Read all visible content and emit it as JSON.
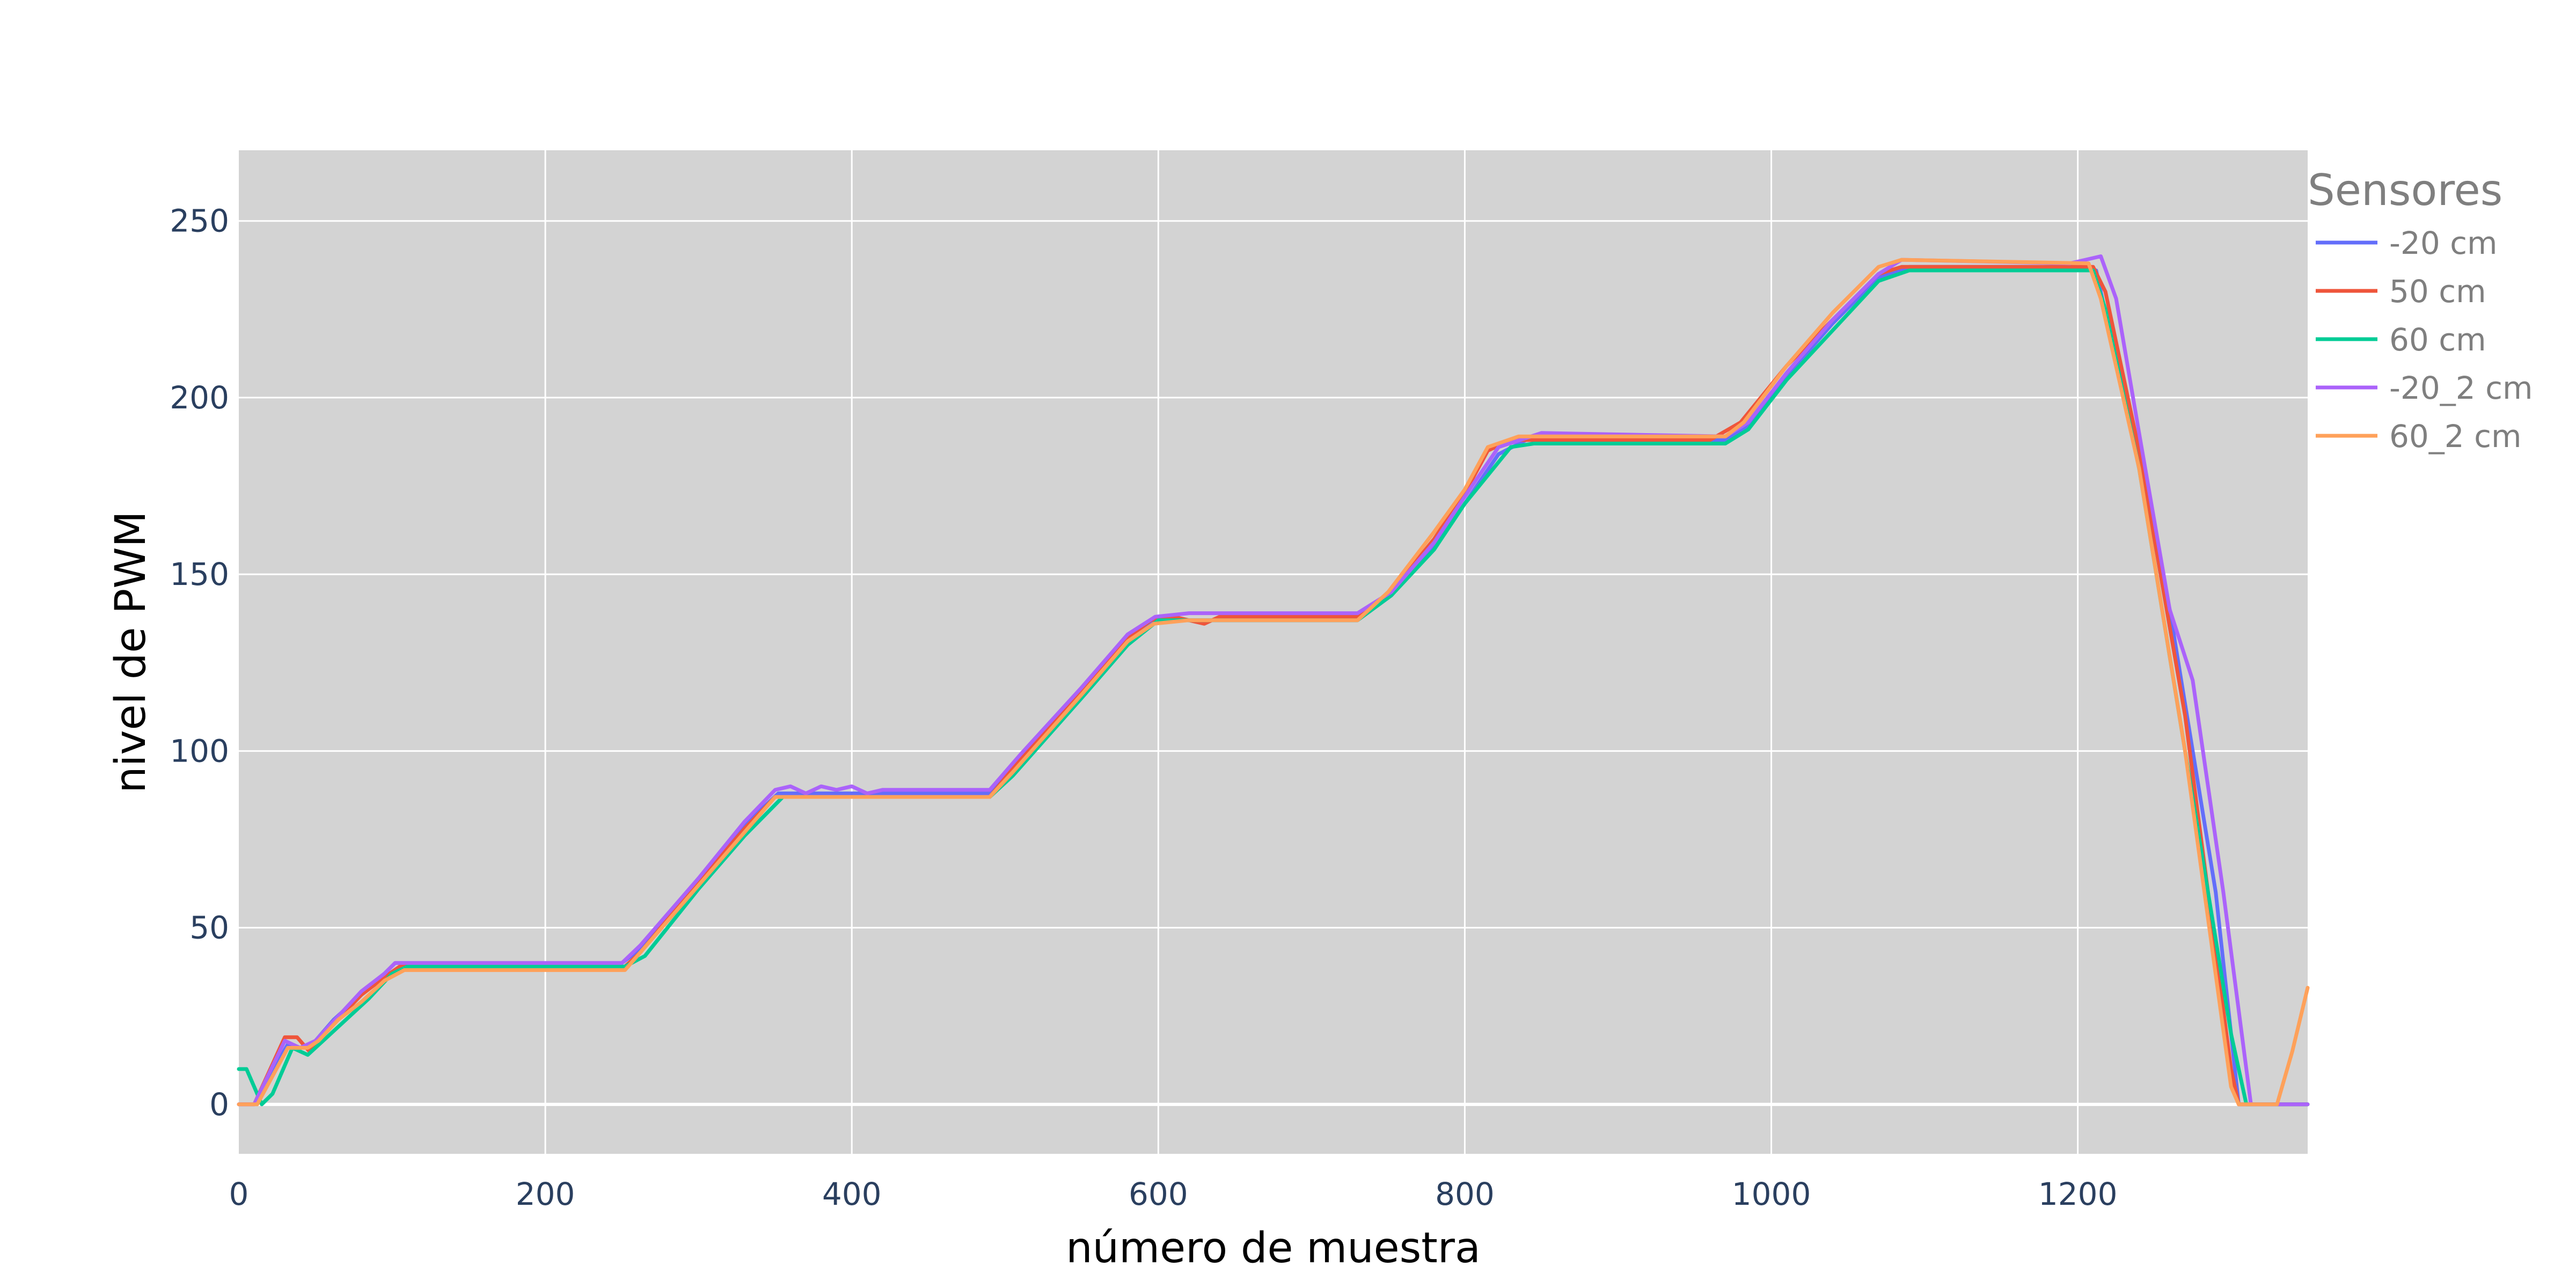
{
  "chart_data": {
    "type": "line",
    "title": "",
    "xlabel": "número de muestra",
    "ylabel": "nivel de PWM",
    "xlim": [
      0,
      1350
    ],
    "ylim": [
      -14,
      270
    ],
    "xticks": [
      0,
      200,
      400,
      600,
      800,
      1000,
      1200
    ],
    "yticks": [
      0,
      50,
      100,
      150,
      200,
      250
    ],
    "grid": true,
    "plot_background": "#d3d3d3",
    "legend": {
      "title": "Sensores",
      "placement": "right"
    },
    "series": [
      {
        "name": "-20 cm",
        "color": "#636efa",
        "points": [
          [
            0,
            0
          ],
          [
            10,
            0
          ],
          [
            32,
            17
          ],
          [
            40,
            16
          ],
          [
            48,
            17
          ],
          [
            62,
            24
          ],
          [
            80,
            31
          ],
          [
            95,
            37
          ],
          [
            102,
            40
          ],
          [
            250,
            40
          ],
          [
            262,
            44
          ],
          [
            300,
            63
          ],
          [
            330,
            79
          ],
          [
            352,
            88
          ],
          [
            490,
            88
          ],
          [
            510,
            98
          ],
          [
            550,
            116
          ],
          [
            580,
            132
          ],
          [
            600,
            137
          ],
          [
            730,
            137
          ],
          [
            752,
            144
          ],
          [
            780,
            158
          ],
          [
            800,
            170
          ],
          [
            822,
            184
          ],
          [
            840,
            188
          ],
          [
            970,
            188
          ],
          [
            982,
            191
          ],
          [
            1010,
            206
          ],
          [
            1040,
            221
          ],
          [
            1070,
            234
          ],
          [
            1090,
            237
          ],
          [
            1205,
            237
          ],
          [
            1212,
            236
          ],
          [
            1230,
            200
          ],
          [
            1260,
            140
          ],
          [
            1290,
            60
          ],
          [
            1305,
            0
          ],
          [
            1350,
            0
          ]
        ]
      },
      {
        "name": "50 cm",
        "color": "#ef553b",
        "points": [
          [
            0,
            0
          ],
          [
            10,
            0
          ],
          [
            30,
            19
          ],
          [
            38,
            19
          ],
          [
            46,
            15
          ],
          [
            60,
            22
          ],
          [
            80,
            31
          ],
          [
            95,
            36
          ],
          [
            105,
            39
          ],
          [
            252,
            39
          ],
          [
            262,
            43
          ],
          [
            300,
            63
          ],
          [
            330,
            78
          ],
          [
            350,
            87
          ],
          [
            490,
            87
          ],
          [
            505,
            95
          ],
          [
            550,
            117
          ],
          [
            580,
            132
          ],
          [
            595,
            137
          ],
          [
            610,
            138
          ],
          [
            630,
            136
          ],
          [
            640,
            138
          ],
          [
            730,
            138
          ],
          [
            750,
            144
          ],
          [
            780,
            160
          ],
          [
            800,
            173
          ],
          [
            815,
            185
          ],
          [
            830,
            188
          ],
          [
            960,
            188
          ],
          [
            980,
            193
          ],
          [
            1010,
            209
          ],
          [
            1040,
            222
          ],
          [
            1070,
            235
          ],
          [
            1085,
            237
          ],
          [
            1210,
            237
          ],
          [
            1218,
            230
          ],
          [
            1240,
            185
          ],
          [
            1270,
            110
          ],
          [
            1300,
            10
          ],
          [
            1305,
            0
          ],
          [
            1350,
            0
          ]
        ]
      },
      {
        "name": "60 cm",
        "color": "#00cc96",
        "points": [
          [
            0,
            10
          ],
          [
            5,
            10
          ],
          [
            15,
            0
          ],
          [
            22,
            3
          ],
          [
            35,
            16
          ],
          [
            45,
            14
          ],
          [
            55,
            18
          ],
          [
            70,
            24
          ],
          [
            85,
            30
          ],
          [
            100,
            37
          ],
          [
            110,
            39
          ],
          [
            252,
            39
          ],
          [
            265,
            42
          ],
          [
            300,
            61
          ],
          [
            330,
            76
          ],
          [
            355,
            87
          ],
          [
            490,
            87
          ],
          [
            505,
            93
          ],
          [
            550,
            115
          ],
          [
            580,
            130
          ],
          [
            600,
            137
          ],
          [
            730,
            137
          ],
          [
            752,
            144
          ],
          [
            780,
            157
          ],
          [
            800,
            170
          ],
          [
            830,
            186
          ],
          [
            845,
            187
          ],
          [
            970,
            187
          ],
          [
            985,
            191
          ],
          [
            1010,
            205
          ],
          [
            1040,
            219
          ],
          [
            1070,
            233
          ],
          [
            1090,
            236
          ],
          [
            1210,
            236
          ],
          [
            1218,
            225
          ],
          [
            1240,
            180
          ],
          [
            1270,
            100
          ],
          [
            1300,
            20
          ],
          [
            1310,
            0
          ],
          [
            1350,
            0
          ]
        ]
      },
      {
        "name": "-20_2 cm",
        "color": "#ab63fa",
        "points": [
          [
            0,
            0
          ],
          [
            10,
            0
          ],
          [
            30,
            18
          ],
          [
            40,
            16
          ],
          [
            50,
            18
          ],
          [
            65,
            25
          ],
          [
            80,
            32
          ],
          [
            95,
            37
          ],
          [
            102,
            40
          ],
          [
            250,
            40
          ],
          [
            262,
            45
          ],
          [
            300,
            64
          ],
          [
            330,
            80
          ],
          [
            350,
            89
          ],
          [
            360,
            90
          ],
          [
            370,
            88
          ],
          [
            380,
            90
          ],
          [
            390,
            89
          ],
          [
            400,
            90
          ],
          [
            410,
            88
          ],
          [
            420,
            89
          ],
          [
            490,
            89
          ],
          [
            510,
            99
          ],
          [
            550,
            118
          ],
          [
            580,
            133
          ],
          [
            598,
            138
          ],
          [
            620,
            139
          ],
          [
            730,
            139
          ],
          [
            752,
            145
          ],
          [
            780,
            159
          ],
          [
            800,
            172
          ],
          [
            822,
            186
          ],
          [
            850,
            190
          ],
          [
            970,
            189
          ],
          [
            985,
            193
          ],
          [
            1010,
            207
          ],
          [
            1040,
            222
          ],
          [
            1070,
            235
          ],
          [
            1085,
            239
          ],
          [
            1195,
            238
          ],
          [
            1205,
            239
          ],
          [
            1215,
            240
          ],
          [
            1225,
            228
          ],
          [
            1240,
            190
          ],
          [
            1260,
            140
          ],
          [
            1275,
            120
          ],
          [
            1295,
            60
          ],
          [
            1313,
            0
          ],
          [
            1350,
            0
          ]
        ]
      },
      {
        "name": "60_2 cm",
        "color": "#ffa15a",
        "points": [
          [
            0,
            0
          ],
          [
            12,
            0
          ],
          [
            32,
            16
          ],
          [
            45,
            16
          ],
          [
            52,
            18
          ],
          [
            65,
            24
          ],
          [
            80,
            29
          ],
          [
            95,
            35
          ],
          [
            108,
            38
          ],
          [
            252,
            38
          ],
          [
            262,
            43
          ],
          [
            300,
            62
          ],
          [
            330,
            77
          ],
          [
            350,
            87
          ],
          [
            490,
            87
          ],
          [
            505,
            94
          ],
          [
            550,
            116
          ],
          [
            580,
            131
          ],
          [
            597,
            136
          ],
          [
            620,
            137
          ],
          [
            730,
            137
          ],
          [
            750,
            145
          ],
          [
            780,
            162
          ],
          [
            800,
            174
          ],
          [
            815,
            186
          ],
          [
            835,
            189
          ],
          [
            970,
            189
          ],
          [
            982,
            193
          ],
          [
            1010,
            209
          ],
          [
            1040,
            224
          ],
          [
            1070,
            237
          ],
          [
            1085,
            239
          ],
          [
            1207,
            238
          ],
          [
            1215,
            228
          ],
          [
            1240,
            180
          ],
          [
            1270,
            100
          ],
          [
            1300,
            5
          ],
          [
            1305,
            0
          ],
          [
            1330,
            0
          ],
          [
            1340,
            15
          ],
          [
            1350,
            33
          ]
        ]
      }
    ]
  }
}
